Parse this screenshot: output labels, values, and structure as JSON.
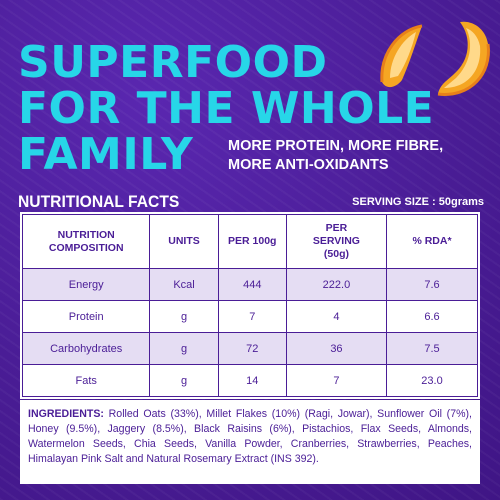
{
  "headline": [
    "SUPERFOOD",
    "FOR THE WHOLE",
    "FAMILY"
  ],
  "tagline": [
    "MORE PROTEIN, MORE FIBRE,",
    "MORE ANTI-OXIDANTS"
  ],
  "nutrition": {
    "title": "NUTRITIONAL FACTS",
    "serving_size": "SERVING SIZE : 50grams",
    "headers": [
      "NUTRITION COMPOSITION",
      "UNITS",
      "PER 100g",
      "PER SERVING (50g)",
      "% RDA*"
    ],
    "rows": [
      [
        "Energy",
        "Kcal",
        "444",
        "222.0",
        "7.6"
      ],
      [
        "Protein",
        "g",
        "7",
        "4",
        "6.6"
      ],
      [
        "Carbohydrates",
        "g",
        "72",
        "36",
        "7.5"
      ],
      [
        "Fats",
        "g",
        "14",
        "7",
        "23.0"
      ]
    ]
  },
  "ingredients": {
    "label": "INGREDIENTS:",
    "text": " Rolled Oats (33%), Millet Flakes (10%) (Ragi, Jowar), Sunflower Oil (7%), Honey (9.5%), Jaggery (8.5%), Black Raisins (6%), Pistachios, Flax Seeds, Almonds, Watermelon Seeds, Chia Seeds, Vanilla Powder, Cranberries, Strawberries, Peaches, Himalayan Pink Salt and Natural Rosemary Extract (INS 392)."
  },
  "colors": {
    "background": "#4a1d96",
    "headline": "#27d6e8",
    "row_tint": "#e5ddf3"
  },
  "decor": [
    "peach-slices-image"
  ]
}
